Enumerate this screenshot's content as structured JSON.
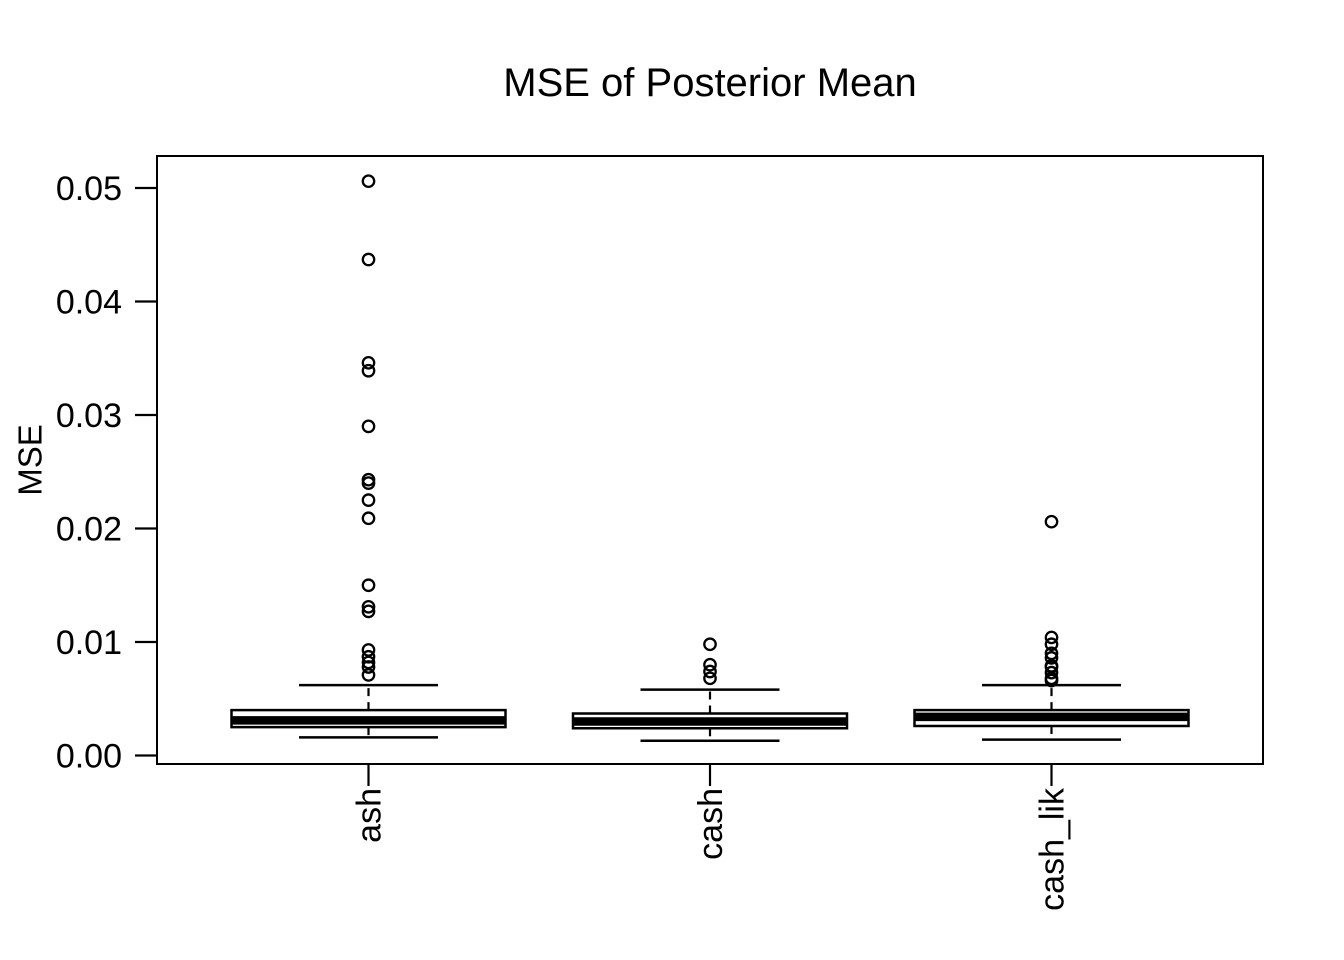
{
  "title": "MSE of Posterior Mean",
  "background_color": "#ffffff",
  "foreground_color": "#000000",
  "chart_data": {
    "type": "boxplot",
    "title": "MSE of Posterior Mean",
    "xlabel": "",
    "ylabel": "MSE",
    "ylim": [
      0,
      0.0525
    ],
    "yticks": [
      0,
      0.01,
      0.02,
      0.03,
      0.04,
      0.05
    ],
    "ytick_labels": [
      "0.00",
      "0.01",
      "0.02",
      "0.03",
      "0.04",
      "0.05"
    ],
    "grid": false,
    "legend": "none",
    "categories": [
      "ash",
      "cash",
      "cash_lik"
    ],
    "series": [
      {
        "name": "ash",
        "whisker_low": 0.0016,
        "q1": 0.0025,
        "median": 0.0031,
        "q3": 0.004,
        "whisker_high": 0.0062,
        "outliers": [
          0.0071,
          0.0078,
          0.0082,
          0.0087,
          0.0093,
          0.0127,
          0.0131,
          0.015,
          0.0209,
          0.0225,
          0.024,
          0.0243,
          0.029,
          0.0339,
          0.0346,
          0.0437,
          0.0506
        ]
      },
      {
        "name": "cash",
        "whisker_low": 0.0013,
        "q1": 0.0024,
        "median": 0.003,
        "q3": 0.0037,
        "whisker_high": 0.0058,
        "outliers": [
          0.0068,
          0.0074,
          0.008,
          0.0098
        ]
      },
      {
        "name": "cash_lik",
        "whisker_low": 0.0014,
        "q1": 0.0026,
        "median": 0.0034,
        "q3": 0.004,
        "whisker_high": 0.0062,
        "outliers": [
          0.0066,
          0.0068,
          0.0073,
          0.0078,
          0.0079,
          0.0086,
          0.009,
          0.0098,
          0.0104,
          0.0206
        ]
      }
    ],
    "colors": {
      "box_stroke": "#000000",
      "box_fill": "#ffffff",
      "outlier_stroke": "#000000",
      "background": "#ffffff"
    }
  }
}
